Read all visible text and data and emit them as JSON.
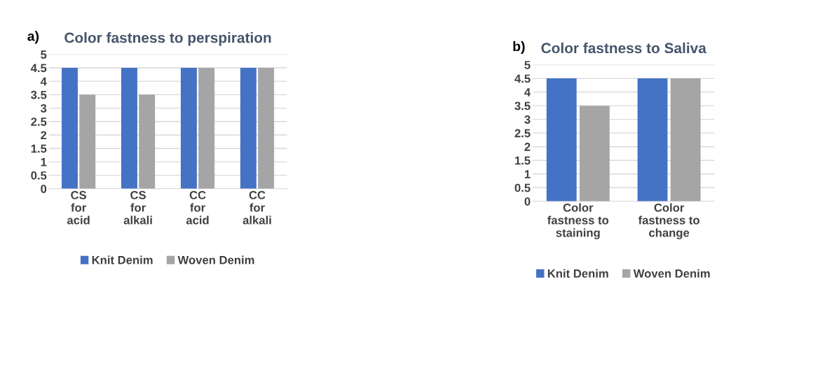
{
  "chart_data": [
    {
      "type": "bar",
      "title": "Color fastness to perspiration",
      "annotations": [
        "a)"
      ],
      "categories": [
        "CS\nfor\nacid",
        "CS\nfor\nalkali",
        "CC\nfor\nacid",
        "CC\nfor\nalkali"
      ],
      "series": [
        {
          "name": "Knit Denim",
          "color": "#4472c4",
          "values": [
            4.5,
            4.5,
            4.5,
            4.5
          ]
        },
        {
          "name": "Woven Denim",
          "color": "#a5a5a5",
          "values": [
            3.5,
            3.5,
            4.5,
            4.5
          ]
        }
      ],
      "ylim": [
        0,
        5
      ],
      "yticks": [
        0,
        0.5,
        1,
        1.5,
        2,
        2.5,
        3,
        3.5,
        4,
        4.5,
        5
      ],
      "grid": "y",
      "legend": "bottom"
    },
    {
      "type": "bar",
      "title": "Color fastness to Saliva",
      "annotations": [
        "b)"
      ],
      "categories": [
        "Color\nfastness to\nstaining",
        "Color\nfastness to\nchange"
      ],
      "series": [
        {
          "name": "Knit Denim",
          "color": "#4472c4",
          "values": [
            4.5,
            4.5
          ]
        },
        {
          "name": "Woven Denim",
          "color": "#a5a5a5",
          "values": [
            3.5,
            4.5
          ]
        }
      ],
      "ylim": [
        0,
        5
      ],
      "yticks": [
        0,
        0.5,
        1,
        1.5,
        2,
        2.5,
        3,
        3.5,
        4,
        4.5,
        5
      ],
      "grid": "y",
      "legend": "bottom"
    }
  ]
}
